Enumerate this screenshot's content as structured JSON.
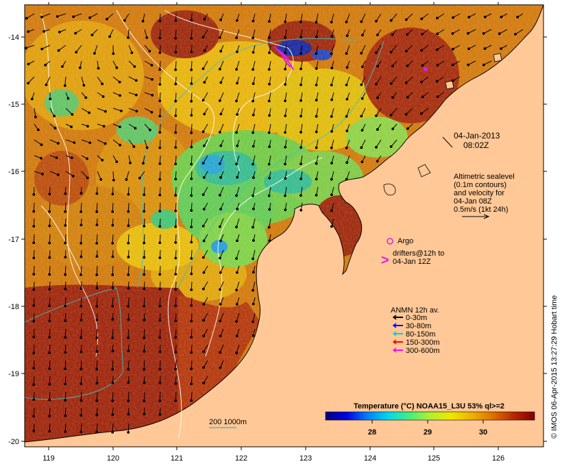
{
  "map": {
    "lon_ticks": [
      "119",
      "120",
      "121",
      "122",
      "123",
      "124",
      "125",
      "126"
    ],
    "lat_ticks": [
      "-14",
      "-15",
      "-16",
      "-17",
      "-18",
      "-19",
      "-20"
    ]
  },
  "timestamp": {
    "date": "04-Jan-2013",
    "time": "08:02Z"
  },
  "altimetry_note": {
    "lines": [
      "Altimetric sealevel",
      "(0.1m contours)",
      "and velocity for",
      "04-Jan 08Z",
      "0.5m/s (1kt 24h)"
    ]
  },
  "argo": {
    "label": "Argo",
    "color": "#e020e0"
  },
  "drifters": {
    "symbol": ">",
    "line1": "drifters@12h to",
    "line2": "04-Jan 12Z",
    "color": "#e020e0"
  },
  "anmn_legend": {
    "title": "ANMN 12h av.",
    "entries": [
      {
        "label": "0-30m",
        "color": "#000000"
      },
      {
        "label": "30-80m",
        "color": "#0000ff"
      },
      {
        "label": "80-150m",
        "color": "#00d0d0"
      },
      {
        "label": "150-300m",
        "color": "#ff0000"
      },
      {
        "label": "300-600m",
        "color": "#ff00ff"
      }
    ]
  },
  "bathymetry_legend": {
    "label": "200  1000m",
    "color": "#40c0c0"
  },
  "colorbar": {
    "title": "Temperature (°C) NOAA15_L3U 53% ql>=2",
    "ticks": [
      "28",
      "29",
      "30"
    ],
    "colors": [
      "#000080",
      "#0000d0",
      "#0060ff",
      "#00b0ff",
      "#00e0e0",
      "#40f080",
      "#a0f040",
      "#f0f000",
      "#f0c000",
      "#f09000",
      "#e06000",
      "#c03000",
      "#a01000",
      "#800000"
    ]
  },
  "credit": "© IMOS 06-Apr-2015 13:27:29 Hobart time",
  "colors": {
    "land": "#ffc896",
    "ocean_dark": "#9a1a00",
    "ocean_warm": "#d87000",
    "ocean_mid": "#f0b000",
    "ocean_cool": "#40d050"
  }
}
